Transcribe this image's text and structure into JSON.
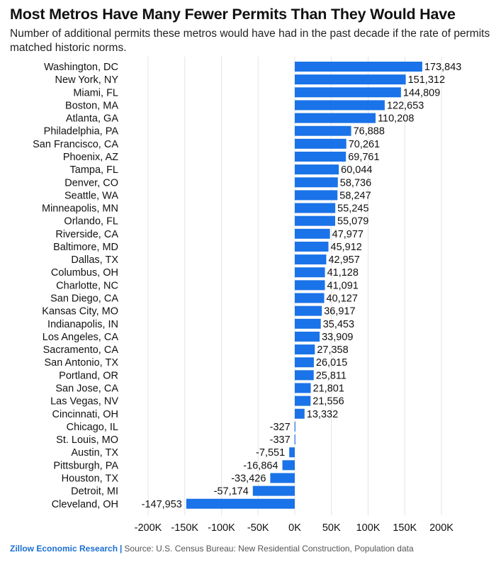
{
  "title": "Most Metros Have Many Fewer Permits Than They Would Have",
  "subtitle": "Number of additional permits these metros would have had in the past decade if the rate of permits matched historic norms.",
  "footer": {
    "brand": "Zillow Economic Research",
    "separator": "|",
    "source": "Source: U.S. Census Bureau: New Residential Construction, Population data"
  },
  "colors": {
    "bar": "#1a73e8",
    "text": "#111111",
    "grid": "#e4e4e4",
    "brand": "#1a6fd1"
  },
  "chart_data": {
    "type": "bar",
    "orientation": "horizontal",
    "title": "Most Metros Have Many Fewer Permits Than They Would Have",
    "subtitle": "Number of additional permits these metros would have had in the past decade if the rate of permits matched historic norms.",
    "xlabel": "",
    "ylabel": "",
    "xlim": [
      -210000,
      250000
    ],
    "grid": true,
    "legend": "none",
    "categories": [
      "Washington, DC",
      "New York, NY",
      "Miami, FL",
      "Boston, MA",
      "Atlanta, GA",
      "Philadelphia, PA",
      "San Francisco, CA",
      "Phoenix, AZ",
      "Tampa, FL",
      "Denver, CO",
      "Seattle, WA",
      "Minneapolis, MN",
      "Orlando, FL",
      "Riverside, CA",
      "Baltimore, MD",
      "Dallas, TX",
      "Columbus, OH",
      "Charlotte, NC",
      "San Diego, CA",
      "Kansas City, MO",
      "Indianapolis, IN",
      "Los Angeles, CA",
      "Sacramento, CA",
      "San Antonio, TX",
      "Portland, OR",
      "San Jose, CA",
      "Las Vegas, NV",
      "Cincinnati, OH",
      "Chicago, IL",
      "St. Louis, MO",
      "Austin, TX",
      "Pittsburgh, PA",
      "Houston, TX",
      "Detroit, MI",
      "Cleveland, OH"
    ],
    "values": [
      173843,
      151312,
      144809,
      122653,
      110208,
      76888,
      70261,
      69761,
      60044,
      58736,
      58247,
      55245,
      55079,
      47977,
      45912,
      42957,
      41128,
      41091,
      40127,
      36917,
      35453,
      33909,
      27358,
      26015,
      25811,
      21801,
      21556,
      13332,
      -327,
      -337,
      -7551,
      -16864,
      -33426,
      -57174,
      -147953
    ],
    "value_labels": [
      "173,843",
      "151,312",
      "144,809",
      "122,653",
      "110,208",
      "76,888",
      "70,261",
      "69,761",
      "60,044",
      "58,736",
      "58,247",
      "55,245",
      "55,079",
      "47,977",
      "45,912",
      "42,957",
      "41,128",
      "41,091",
      "40,127",
      "36,917",
      "35,453",
      "33,909",
      "27,358",
      "26,015",
      "25,811",
      "21,801",
      "21,556",
      "13,332",
      "-327",
      "-337",
      "-7,551",
      "-16,864",
      "-33,426",
      "-57,174",
      "-147,953"
    ],
    "ticks": [
      -200000,
      -150000,
      -100000,
      -50000,
      0,
      50000,
      100000,
      150000,
      200000
    ],
    "tick_labels": [
      "-200K",
      "-150K",
      "-100K",
      "-50K",
      "0K",
      "50K",
      "100K",
      "150K",
      "200K"
    ]
  }
}
